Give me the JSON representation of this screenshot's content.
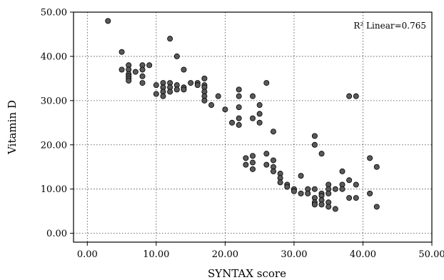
{
  "chart_data": {
    "type": "scatter",
    "xlabel": "SYNTAX score",
    "ylabel": "Vitamin D",
    "xlim": [
      -2,
      50
    ],
    "ylim": [
      -2,
      50
    ],
    "xticks": [
      0,
      10,
      20,
      30,
      40,
      50
    ],
    "yticks": [
      0,
      10,
      20,
      30,
      40,
      50
    ],
    "xtick_labels": [
      "0.00",
      "10.00",
      "20.00",
      "30.00",
      "40.00",
      "50.00"
    ],
    "ytick_labels": [
      "0.00",
      "10.00",
      "20.00",
      "30.00",
      "40.00",
      "50.00"
    ],
    "grid": true,
    "annotation": "R² Linear=0.765",
    "point_color": "#595959",
    "series": [
      {
        "points": [
          [
            3,
            48
          ],
          [
            5,
            41
          ],
          [
            5,
            37
          ],
          [
            6,
            38
          ],
          [
            6,
            37
          ],
          [
            6,
            36
          ],
          [
            6,
            35.5
          ],
          [
            6,
            35
          ],
          [
            6,
            34.5
          ],
          [
            7,
            36.5
          ],
          [
            8,
            38
          ],
          [
            8,
            37
          ],
          [
            8,
            35.5
          ],
          [
            8,
            34
          ],
          [
            9,
            38
          ],
          [
            10,
            33.5
          ],
          [
            10,
            31.5
          ],
          [
            11,
            34
          ],
          [
            11,
            33
          ],
          [
            11,
            32
          ],
          [
            11,
            31
          ],
          [
            12,
            44
          ],
          [
            12,
            34
          ],
          [
            12,
            33
          ],
          [
            12,
            32
          ],
          [
            13,
            40
          ],
          [
            13,
            33.5
          ],
          [
            13,
            32.5
          ],
          [
            14,
            37
          ],
          [
            14,
            33
          ],
          [
            14,
            32.5
          ],
          [
            15,
            34
          ],
          [
            16,
            34
          ],
          [
            16,
            33.5
          ],
          [
            17,
            35
          ],
          [
            17,
            33.5
          ],
          [
            17,
            33
          ],
          [
            17,
            32
          ],
          [
            17,
            31
          ],
          [
            17,
            30
          ],
          [
            18,
            29
          ],
          [
            19,
            31
          ],
          [
            20,
            28
          ],
          [
            21,
            25
          ],
          [
            22,
            32.5
          ],
          [
            22,
            31
          ],
          [
            22,
            28.5
          ],
          [
            22,
            26
          ],
          [
            22,
            24.5
          ],
          [
            24,
            31
          ],
          [
            24,
            26
          ],
          [
            25,
            29
          ],
          [
            25,
            27
          ],
          [
            25,
            25
          ],
          [
            26,
            34
          ],
          [
            27,
            23
          ],
          [
            23,
            17
          ],
          [
            23,
            15.5
          ],
          [
            24,
            17.5
          ],
          [
            24,
            16
          ],
          [
            24,
            14.5
          ],
          [
            26,
            18
          ],
          [
            26,
            15.5
          ],
          [
            27,
            16.5
          ],
          [
            27,
            15
          ],
          [
            27,
            14
          ],
          [
            28,
            13.5
          ],
          [
            28,
            12.5
          ],
          [
            28,
            11.5
          ],
          [
            29,
            11
          ],
          [
            29,
            10.5
          ],
          [
            30,
            10
          ],
          [
            30,
            9.5
          ],
          [
            31,
            13
          ],
          [
            31,
            9
          ],
          [
            32,
            10
          ],
          [
            32,
            9
          ],
          [
            33,
            22
          ],
          [
            33,
            20
          ],
          [
            33,
            10
          ],
          [
            33,
            8
          ],
          [
            33,
            7
          ],
          [
            33,
            6.5
          ],
          [
            34,
            18
          ],
          [
            34,
            9
          ],
          [
            34,
            8.5
          ],
          [
            34,
            7.5
          ],
          [
            34,
            6.5
          ],
          [
            35,
            11
          ],
          [
            35,
            10
          ],
          [
            35,
            9
          ],
          [
            35,
            7
          ],
          [
            35,
            6
          ],
          [
            36,
            10
          ],
          [
            36,
            5.5
          ],
          [
            37,
            14
          ],
          [
            37,
            11
          ],
          [
            37,
            10
          ],
          [
            38,
            31
          ],
          [
            38,
            12
          ],
          [
            38,
            8
          ],
          [
            39,
            31
          ],
          [
            39,
            11
          ],
          [
            39,
            8
          ],
          [
            41,
            17
          ],
          [
            41,
            9
          ],
          [
            42,
            15
          ],
          [
            42,
            6
          ]
        ]
      }
    ]
  }
}
